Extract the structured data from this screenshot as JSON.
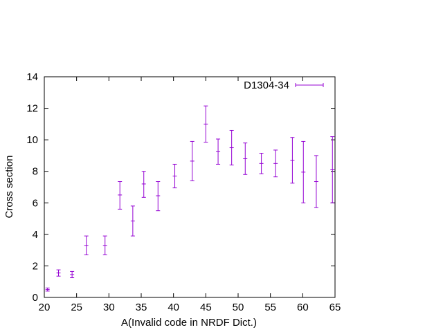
{
  "chart_data": {
    "type": "scatter",
    "title": "",
    "xlabel": "A(Invalid code in NRDF Dict.)",
    "ylabel": "Cross section",
    "xlim": [
      20,
      65
    ],
    "ylim": [
      0,
      14
    ],
    "xticks": [
      20,
      25,
      30,
      35,
      40,
      45,
      50,
      55,
      60,
      65
    ],
    "yticks": [
      0,
      2,
      4,
      6,
      8,
      10,
      12,
      14
    ],
    "grid": false,
    "legend_position": "top-right",
    "series": [
      {
        "name": "D1304-34",
        "color": "#9400d3",
        "error_bars": true,
        "points": [
          {
            "x": 20.5,
            "y": 0.5,
            "ylow": 0.4,
            "yhigh": 0.6
          },
          {
            "x": 22.2,
            "y": 1.55,
            "ylow": 1.35,
            "yhigh": 1.75
          },
          {
            "x": 24.3,
            "y": 1.45,
            "ylow": 1.25,
            "yhigh": 1.65
          },
          {
            "x": 26.5,
            "y": 3.3,
            "ylow": 2.7,
            "yhigh": 3.9
          },
          {
            "x": 29.4,
            "y": 3.3,
            "ylow": 2.7,
            "yhigh": 3.9
          },
          {
            "x": 31.7,
            "y": 6.5,
            "ylow": 5.6,
            "yhigh": 7.35
          },
          {
            "x": 33.7,
            "y": 4.85,
            "ylow": 3.9,
            "yhigh": 5.8
          },
          {
            "x": 35.4,
            "y": 7.2,
            "ylow": 6.35,
            "yhigh": 8.0
          },
          {
            "x": 37.6,
            "y": 6.45,
            "ylow": 5.5,
            "yhigh": 7.35
          },
          {
            "x": 40.2,
            "y": 7.7,
            "ylow": 6.95,
            "yhigh": 8.45
          },
          {
            "x": 42.9,
            "y": 8.65,
            "ylow": 7.4,
            "yhigh": 9.9
          },
          {
            "x": 45.0,
            "y": 11.0,
            "ylow": 9.85,
            "yhigh": 12.15
          },
          {
            "x": 46.9,
            "y": 9.25,
            "ylow": 8.45,
            "yhigh": 10.05
          },
          {
            "x": 49.0,
            "y": 9.5,
            "ylow": 8.4,
            "yhigh": 10.6
          },
          {
            "x": 51.1,
            "y": 8.8,
            "ylow": 7.8,
            "yhigh": 9.8
          },
          {
            "x": 53.6,
            "y": 8.5,
            "ylow": 7.85,
            "yhigh": 9.15
          },
          {
            "x": 55.8,
            "y": 8.5,
            "ylow": 7.65,
            "yhigh": 9.35
          },
          {
            "x": 58.4,
            "y": 8.7,
            "ylow": 7.25,
            "yhigh": 10.15
          },
          {
            "x": 60.1,
            "y": 7.95,
            "ylow": 6.0,
            "yhigh": 9.9
          },
          {
            "x": 62.1,
            "y": 7.35,
            "ylow": 5.7,
            "yhigh": 9.0
          },
          {
            "x": 64.6,
            "y": 8.1,
            "ylow": 6.0,
            "yhigh": 10.2
          }
        ]
      }
    ]
  }
}
